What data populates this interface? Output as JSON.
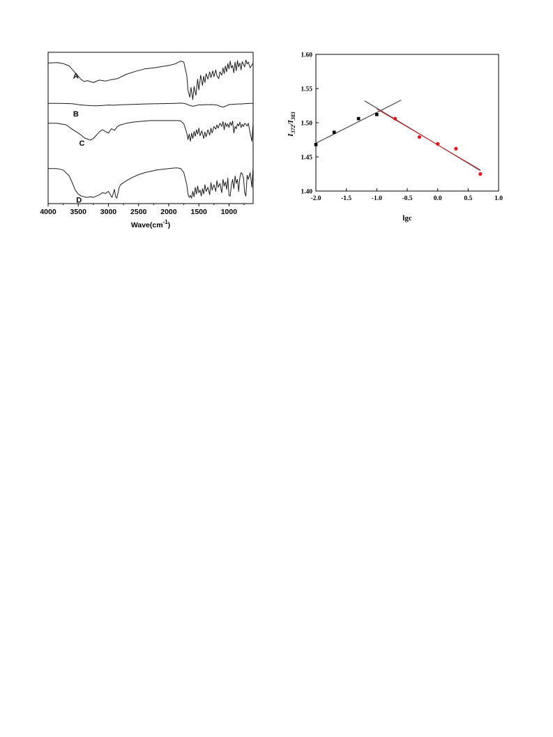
{
  "chart_data": [
    {
      "type": "line",
      "xlabel": "Wave(cm",
      "xlabel_sup": "-1",
      "xlabel_close": ")",
      "ylabel": "",
      "xlim": [
        4000,
        600
      ],
      "x_ticks": [
        "4000",
        "3500",
        "3000",
        "2500",
        "2000",
        "1500",
        "1000"
      ],
      "grid": false,
      "series": [
        {
          "name": "A",
          "x": [
            4000,
            3850,
            3750,
            3650,
            3550,
            3450,
            3400,
            3350,
            3250,
            3150,
            3050,
            2950,
            2850,
            2700,
            2550,
            2400,
            2250,
            2100,
            2000,
            1900,
            1850,
            1800,
            1750,
            1700,
            1680,
            1650,
            1630,
            1600,
            1580,
            1550,
            1520,
            1500,
            1470,
            1440,
            1420,
            1400,
            1380,
            1350,
            1320,
            1300,
            1270,
            1250,
            1220,
            1200,
            1170,
            1150,
            1120,
            1100,
            1080,
            1060,
            1040,
            1020,
            1000,
            980,
            960,
            940,
            920,
            900,
            880,
            860,
            840,
            820,
            800,
            780,
            760,
            740,
            720,
            700,
            680,
            650,
            600
          ],
          "values": [
            0.88,
            0.89,
            0.87,
            0.82,
            0.68,
            0.54,
            0.5,
            0.52,
            0.48,
            0.53,
            0.51,
            0.54,
            0.56,
            0.65,
            0.71,
            0.76,
            0.78,
            0.81,
            0.83,
            0.86,
            0.89,
            0.92,
            0.9,
            0.62,
            0.32,
            0.18,
            0.38,
            0.13,
            0.4,
            0.22,
            0.55,
            0.33,
            0.63,
            0.42,
            0.61,
            0.48,
            0.66,
            0.55,
            0.7,
            0.58,
            0.72,
            0.6,
            0.74,
            0.62,
            0.56,
            0.7,
            0.63,
            0.78,
            0.66,
            0.82,
            0.7,
            0.87,
            0.76,
            0.92,
            0.78,
            0.83,
            0.68,
            0.9,
            0.72,
            0.93,
            0.8,
            0.88,
            0.74,
            0.91,
            0.85,
            0.8,
            0.94,
            0.86,
            0.9,
            0.78,
            0.88
          ]
        },
        {
          "name": "B",
          "x": [
            4000,
            3800,
            3600,
            3500,
            3400,
            3350,
            3300,
            3200,
            3100,
            3000,
            2900,
            2800,
            2600,
            2400,
            2200,
            2000,
            1900,
            1800,
            1750,
            1700,
            1650,
            1600,
            1550,
            1500,
            1450,
            1400,
            1350,
            1300,
            1250,
            1200,
            1150,
            1100,
            1050,
            1000,
            950,
            900,
            850,
            800,
            750,
            700,
            650,
            600
          ],
          "values": [
            0.66,
            0.66,
            0.64,
            0.6,
            0.57,
            0.56,
            0.55,
            0.54,
            0.56,
            0.58,
            0.57,
            0.59,
            0.61,
            0.63,
            0.64,
            0.65,
            0.66,
            0.67,
            0.66,
            0.62,
            0.56,
            0.52,
            0.55,
            0.59,
            0.58,
            0.6,
            0.59,
            0.6,
            0.59,
            0.58,
            0.52,
            0.48,
            0.53,
            0.6,
            0.61,
            0.62,
            0.63,
            0.63,
            0.64,
            0.65,
            0.66,
            0.66
          ]
        },
        {
          "name": "C",
          "x": [
            4000,
            3850,
            3700,
            3600,
            3500,
            3450,
            3400,
            3350,
            3300,
            3250,
            3200,
            3150,
            3100,
            3050,
            3000,
            2950,
            2900,
            2850,
            2800,
            2700,
            2600,
            2500,
            2400,
            2300,
            2200,
            2100,
            2000,
            1900,
            1850,
            1800,
            1750,
            1700,
            1680,
            1660,
            1640,
            1620,
            1600,
            1580,
            1560,
            1540,
            1520,
            1500,
            1480,
            1450,
            1420,
            1400,
            1380,
            1350,
            1320,
            1300,
            1280,
            1250,
            1220,
            1200,
            1180,
            1150,
            1120,
            1100,
            1080,
            1060,
            1040,
            1020,
            1000,
            980,
            960,
            940,
            920,
            900,
            880,
            860,
            840,
            820,
            800,
            780,
            760,
            740,
            720,
            700,
            680,
            650,
            620,
            600
          ],
          "values": [
            0.58,
            0.58,
            0.55,
            0.47,
            0.4,
            0.36,
            0.31,
            0.29,
            0.27,
            0.3,
            0.36,
            0.42,
            0.46,
            0.43,
            0.4,
            0.48,
            0.45,
            0.52,
            0.55,
            0.58,
            0.6,
            0.61,
            0.62,
            0.63,
            0.63,
            0.63,
            0.63,
            0.63,
            0.63,
            0.62,
            0.57,
            0.4,
            0.28,
            0.38,
            0.25,
            0.4,
            0.3,
            0.43,
            0.34,
            0.46,
            0.38,
            0.49,
            0.35,
            0.44,
            0.3,
            0.42,
            0.33,
            0.46,
            0.36,
            0.49,
            0.4,
            0.52,
            0.47,
            0.55,
            0.49,
            0.58,
            0.52,
            0.61,
            0.46,
            0.59,
            0.52,
            0.57,
            0.5,
            0.6,
            0.54,
            0.62,
            0.4,
            0.52,
            0.48,
            0.57,
            0.53,
            0.6,
            0.5,
            0.56,
            0.52,
            0.58,
            0.56,
            0.53,
            0.58,
            0.4,
            0.25,
            0.6
          ]
        },
        {
          "name": "D",
          "x": [
            4000,
            3850,
            3750,
            3650,
            3600,
            3550,
            3500,
            3450,
            3400,
            3350,
            3300,
            3250,
            3200,
            3150,
            3100,
            3050,
            3000,
            2960,
            2940,
            2920,
            2900,
            2880,
            2860,
            2840,
            2820,
            2800,
            2700,
            2600,
            2500,
            2400,
            2300,
            2200,
            2100,
            2000,
            1900,
            1850,
            1800,
            1750,
            1700,
            1680,
            1660,
            1640,
            1620,
            1600,
            1580,
            1560,
            1540,
            1520,
            1500,
            1480,
            1460,
            1440,
            1420,
            1400,
            1380,
            1350,
            1320,
            1300,
            1280,
            1250,
            1220,
            1200,
            1180,
            1150,
            1120,
            1100,
            1080,
            1060,
            1040,
            1020,
            1000,
            980,
            960,
            940,
            920,
            900,
            880,
            860,
            840,
            820,
            800,
            780,
            760,
            740,
            720,
            700,
            680,
            650,
            620,
            600
          ],
          "values": [
            0.46,
            0.46,
            0.44,
            0.35,
            0.25,
            0.14,
            0.08,
            0.05,
            0.04,
            0.03,
            0.04,
            0.03,
            0.05,
            0.07,
            0.1,
            0.09,
            0.12,
            0.06,
            0.03,
            0.09,
            0.15,
            0.04,
            0.02,
            0.1,
            0.18,
            0.22,
            0.28,
            0.33,
            0.37,
            0.4,
            0.42,
            0.44,
            0.45,
            0.46,
            0.47,
            0.47,
            0.46,
            0.4,
            0.22,
            0.08,
            0.03,
            0.06,
            0.02,
            0.12,
            0.04,
            0.18,
            0.08,
            0.2,
            0.1,
            0.14,
            0.05,
            0.16,
            0.08,
            0.22,
            0.12,
            0.18,
            0.07,
            0.25,
            0.14,
            0.22,
            0.12,
            0.28,
            0.18,
            0.24,
            0.1,
            0.3,
            0.2,
            0.26,
            0.15,
            0.32,
            0.06,
            0.05,
            0.22,
            0.3,
            0.16,
            0.35,
            0.24,
            0.3,
            0.12,
            0.33,
            0.4,
            0.38,
            0.32,
            0.1,
            0.05,
            0.36,
            0.3,
            0.4,
            0.18,
            0.5
          ]
        }
      ]
    },
    {
      "type": "scatter",
      "xlabel": "lgc",
      "ylabel": "I",
      "ylabel_sub1": "372",
      "ylabel_mid": "/I",
      "ylabel_sub2": "383",
      "xlim": [
        -2.0,
        1.0
      ],
      "ylim": [
        1.4,
        1.6
      ],
      "x_ticks": [
        "-2.0",
        "-1.5",
        "-1.0",
        "-0.5",
        "0.0",
        "0.5",
        "1.0"
      ],
      "y_ticks": [
        "1.40",
        "1.45",
        "1.50",
        "1.55",
        "1.60"
      ],
      "grid": false,
      "series": [
        {
          "marker": "square",
          "color": "#000000",
          "x": [
            -2.0,
            -1.7,
            -1.3,
            -1.0
          ],
          "values": [
            1.468,
            1.486,
            1.506,
            1.512
          ]
        },
        {
          "marker": "circle",
          "color": "#e8161b",
          "x": [
            -0.7,
            -0.3,
            0.0,
            0.3,
            0.7
          ],
          "values": [
            1.506,
            1.479,
            1.469,
            1.462,
            1.425
          ]
        }
      ],
      "fit_lines": [
        {
          "color": "#3a3a3a",
          "x": [
            -2.0,
            -0.6
          ],
          "values": [
            1.47,
            1.533
          ]
        },
        {
          "color": "#3a3a3a",
          "x": [
            -1.2,
            0.7
          ],
          "values": [
            1.532,
            1.43
          ]
        },
        {
          "color": "#e8161b",
          "x": [
            -1.0,
            0.7
          ],
          "values": [
            1.52,
            1.431
          ]
        }
      ]
    }
  ]
}
